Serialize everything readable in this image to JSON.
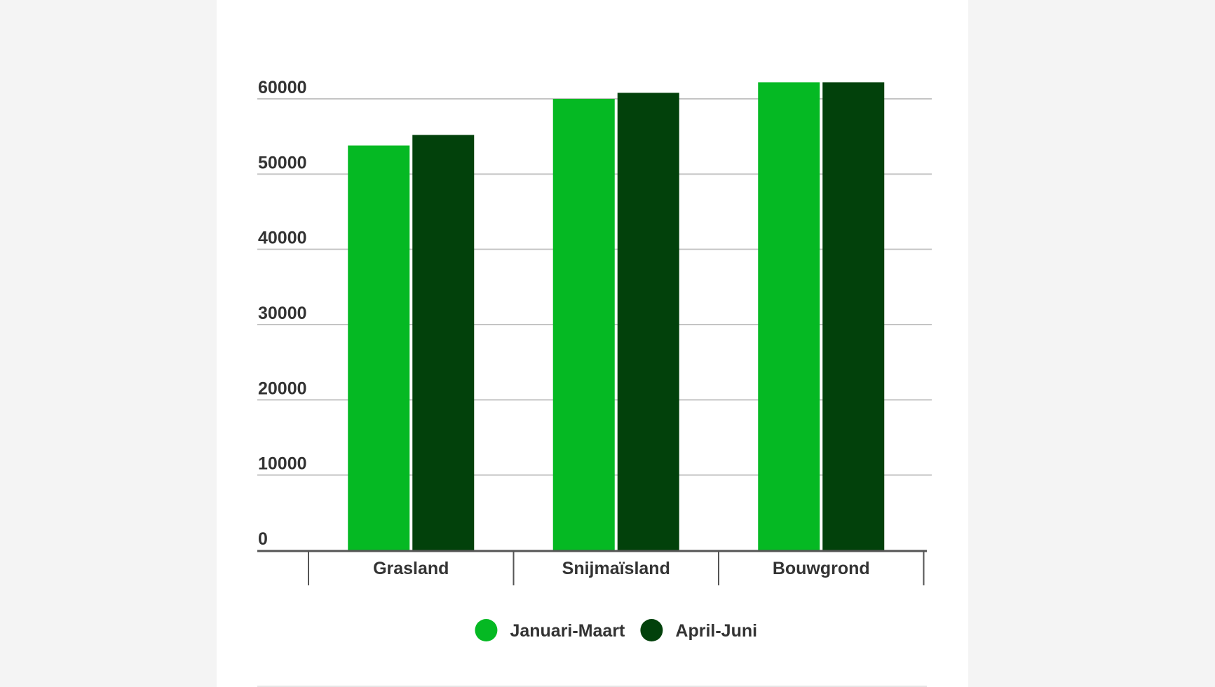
{
  "chart_data": {
    "type": "bar",
    "categories": [
      "Grasland",
      "Snijmaïsland",
      "Bouwgrond"
    ],
    "series": [
      {
        "name": "Januari-Maart",
        "color": "#05b923",
        "values": [
          53800,
          60000,
          62200
        ]
      },
      {
        "name": "April-Juni",
        "color": "#02410b",
        "values": [
          55200,
          60800,
          62200
        ]
      }
    ],
    "yticks": [
      0,
      10000,
      20000,
      30000,
      40000,
      50000,
      60000
    ],
    "ylim": [
      0,
      60000
    ],
    "grid": true,
    "legend_position": "bottom"
  }
}
